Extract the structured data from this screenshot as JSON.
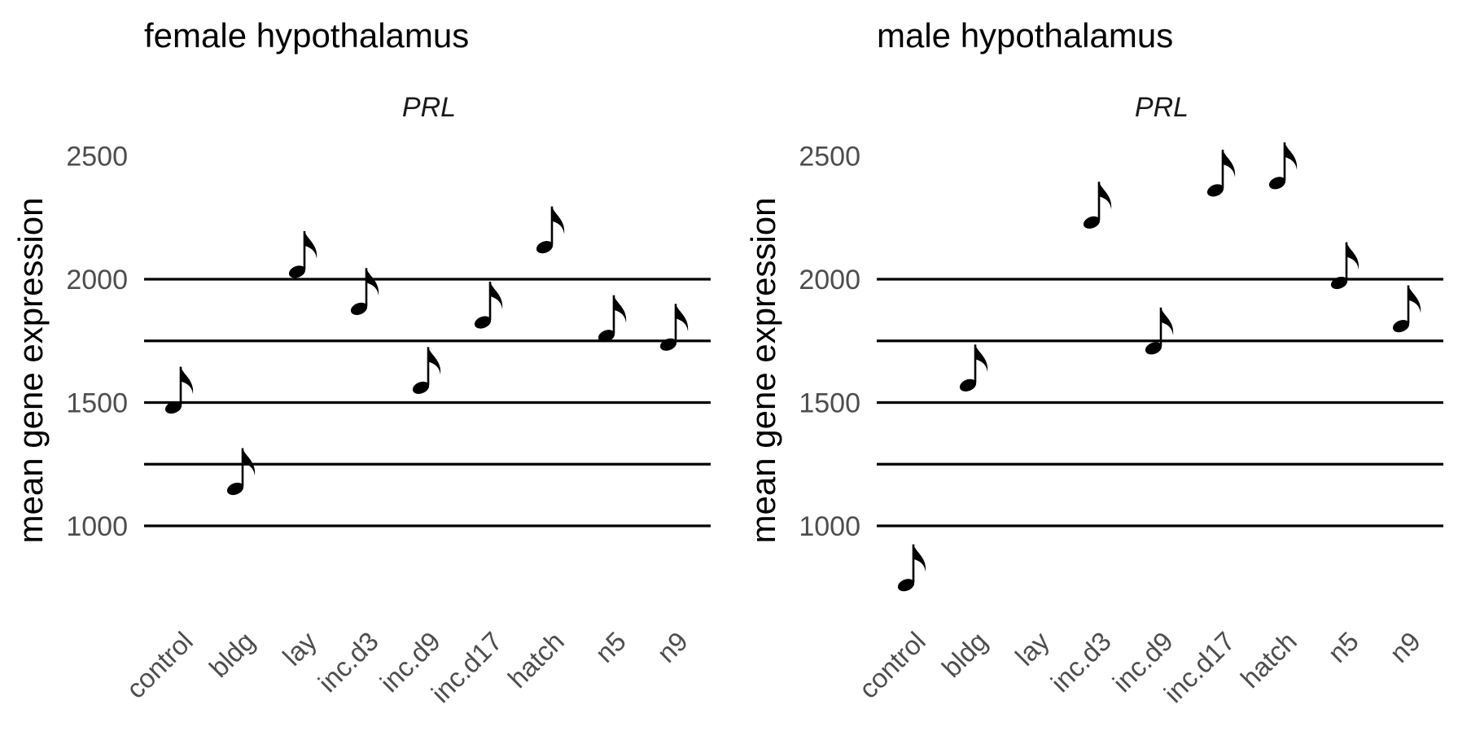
{
  "chart_data": [
    {
      "type": "scatter",
      "title": "female hypothalamus",
      "subtitle": "PRL",
      "ylabel": "mean gene expression",
      "xlabel": "",
      "categories": [
        "control",
        "bldg",
        "lay",
        "inc.d3",
        "inc.d9",
        "inc.d17",
        "hatch",
        "n5",
        "n9"
      ],
      "values": [
        1480,
        1150,
        2030,
        1880,
        1560,
        1825,
        2130,
        1770,
        1735
      ],
      "yticks": [
        1000,
        1500,
        2000,
        2500
      ],
      "gridlines": [
        1000,
        1250,
        1500,
        1750,
        2000
      ],
      "ylim": [
        650,
        2600
      ],
      "marker": "eighth-note",
      "grid": true,
      "legend": "none"
    },
    {
      "type": "scatter",
      "title": "male hypothalamus",
      "subtitle": "PRL",
      "ylabel": "mean gene expression",
      "xlabel": "",
      "categories": [
        "control",
        "bldg",
        "lay",
        "inc.d3",
        "inc.d9",
        "inc.d17",
        "hatch",
        "n5",
        "n9"
      ],
      "values": [
        760,
        1570,
        null,
        2230,
        1720,
        2360,
        2390,
        1985,
        1810
      ],
      "yticks": [
        1000,
        1500,
        2000,
        2500
      ],
      "gridlines": [
        1000,
        1250,
        1500,
        1750,
        2000
      ],
      "ylim": [
        650,
        2600
      ],
      "marker": "eighth-note",
      "grid": true,
      "legend": "none"
    }
  ],
  "colors": {
    "staff": "#000000",
    "note": "#000000",
    "tick_text": "#4d4d4d"
  }
}
